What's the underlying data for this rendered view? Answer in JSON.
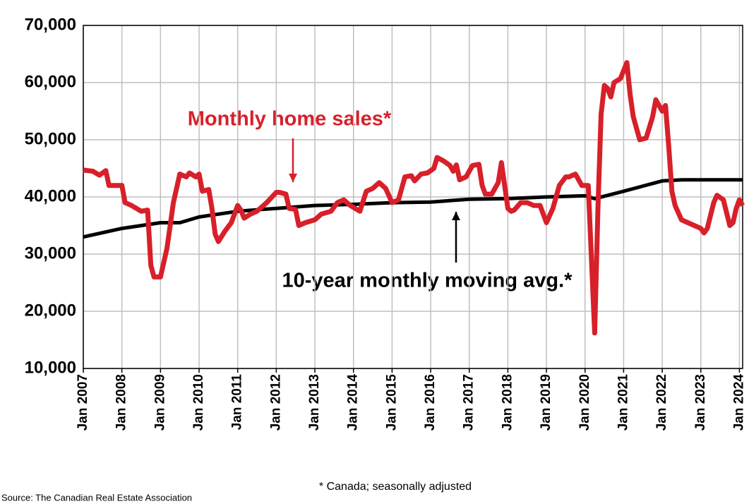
{
  "chart_data": {
    "type": "line",
    "annotations": [
      "Monthly home sales*",
      "10-year monthly moving avg.*"
    ],
    "footnote": "* Canada; seasonally adjusted",
    "source": "Source: The Canadian Real Estate Association",
    "grid": true,
    "xlim": [
      "2007-01",
      "2024-02"
    ],
    "xticks": [
      {
        "value": "2007-01",
        "label": "Jan 2007"
      },
      {
        "value": "2008-01",
        "label": "Jan 2008"
      },
      {
        "value": "2009-01",
        "label": "Jan 2009"
      },
      {
        "value": "2010-01",
        "label": "Jan 2010"
      },
      {
        "value": "2011-01",
        "label": "Jan 2011"
      },
      {
        "value": "2012-01",
        "label": "Jan 2012"
      },
      {
        "value": "2013-01",
        "label": "Jan 2013"
      },
      {
        "value": "2014-01",
        "label": "Jan 2014"
      },
      {
        "value": "2015-01",
        "label": "Jan 2015"
      },
      {
        "value": "2016-01",
        "label": "Jan 2016"
      },
      {
        "value": "2017-01",
        "label": "Jan 2017"
      },
      {
        "value": "2018-01",
        "label": "Jan 2018"
      },
      {
        "value": "2019-01",
        "label": "Jan 2019"
      },
      {
        "value": "2020-01",
        "label": "Jan 2020"
      },
      {
        "value": "2021-01",
        "label": "Jan 2021"
      },
      {
        "value": "2022-01",
        "label": "Jan 2022"
      },
      {
        "value": "2023-01",
        "label": "Jan 2023"
      },
      {
        "value": "2024-01",
        "label": "Jan 2024"
      }
    ],
    "ylim": [
      10000,
      70000
    ],
    "yticks": [
      {
        "value": 10000,
        "label": "10,000"
      },
      {
        "value": 20000,
        "label": "20,000"
      },
      {
        "value": 30000,
        "label": "30,000"
      },
      {
        "value": 40000,
        "label": "40,000"
      },
      {
        "value": 50000,
        "label": "50,000"
      },
      {
        "value": 60000,
        "label": "60,000"
      },
      {
        "value": 70000,
        "label": "70,000"
      }
    ],
    "series": [
      {
        "color": "#d7202a",
        "x": [
          "2007-01",
          "2007-04",
          "2007-06",
          "2007-08",
          "2007-09",
          "2008-01",
          "2008-02",
          "2008-04",
          "2008-07",
          "2008-09",
          "2008-10",
          "2008-11",
          "2009-01",
          "2009-03",
          "2009-05",
          "2009-07",
          "2009-09",
          "2009-10",
          "2009-12",
          "2010-01",
          "2010-02",
          "2010-04",
          "2010-05",
          "2010-06",
          "2010-07",
          "2010-09",
          "2010-11",
          "2011-01",
          "2011-02",
          "2011-03",
          "2011-05",
          "2011-07",
          "2011-10",
          "2012-01",
          "2012-02",
          "2012-04",
          "2012-05",
          "2012-07",
          "2012-08",
          "2012-10",
          "2013-01",
          "2013-03",
          "2013-06",
          "2013-08",
          "2013-10",
          "2013-12",
          "2014-03",
          "2014-05",
          "2014-07",
          "2014-09",
          "2014-11",
          "2015-01",
          "2015-03",
          "2015-05",
          "2015-07",
          "2015-08",
          "2015-10",
          "2015-12",
          "2016-02",
          "2016-03",
          "2016-05",
          "2016-07",
          "2016-08",
          "2016-09",
          "2016-10",
          "2016-12",
          "2017-02",
          "2017-04",
          "2017-05",
          "2017-06",
          "2017-08",
          "2017-10",
          "2017-11",
          "2018-01",
          "2018-02",
          "2018-03",
          "2018-05",
          "2018-07",
          "2018-09",
          "2018-11",
          "2019-01",
          "2019-03",
          "2019-05",
          "2019-07",
          "2019-08",
          "2019-10",
          "2019-12",
          "2020-01",
          "2020-02",
          "2020-04",
          "2020-05",
          "2020-06",
          "2020-07",
          "2020-08",
          "2020-09",
          "2020-10",
          "2020-12",
          "2021-02",
          "2021-03",
          "2021-04",
          "2021-06",
          "2021-08",
          "2021-10",
          "2021-11",
          "2022-01",
          "2022-02",
          "2022-03",
          "2022-04",
          "2022-05",
          "2022-07",
          "2022-09",
          "2023-01",
          "2023-02",
          "2023-03",
          "2023-05",
          "2023-06",
          "2023-08",
          "2023-10",
          "2023-11",
          "2023-12",
          "2024-01",
          "2024-02"
        ],
        "values": [
          44700,
          44500,
          43800,
          44600,
          42000,
          42000,
          39000,
          38500,
          37500,
          37700,
          28000,
          26000,
          26000,
          31000,
          39000,
          44000,
          43500,
          44200,
          43500,
          44000,
          41000,
          41300,
          38000,
          33500,
          32200,
          34000,
          35500,
          38500,
          37700,
          36300,
          37000,
          37500,
          39000,
          40800,
          40800,
          40500,
          38000,
          37800,
          35000,
          35500,
          36000,
          37000,
          37500,
          39000,
          39500,
          38500,
          37500,
          41000,
          41500,
          42500,
          41500,
          39000,
          39500,
          43500,
          43700,
          42800,
          44000,
          44200,
          45000,
          46900,
          46300,
          45500,
          44500,
          45600,
          43000,
          43500,
          45500,
          45700,
          42000,
          40500,
          40500,
          42500,
          46000,
          38000,
          37500,
          37700,
          39000,
          39000,
          38500,
          38500,
          35500,
          38000,
          42000,
          43500,
          43500,
          44000,
          42000,
          42000,
          42000,
          16200,
          38000,
          54500,
          59500,
          59000,
          57500,
          60000,
          60700,
          63500,
          58000,
          54000,
          50000,
          50300,
          54000,
          57000,
          55000,
          56000,
          49000,
          41000,
          38500,
          36000,
          35500,
          34500,
          33700,
          34500,
          39000,
          40300,
          39500,
          35000,
          35500,
          38000,
          39500,
          38500
        ]
      },
      {
        "color": "#000000",
        "x": [
          "2007-01",
          "2008-01",
          "2009-01",
          "2009-07",
          "2010-01",
          "2011-01",
          "2012-01",
          "2013-01",
          "2014-01",
          "2015-01",
          "2016-01",
          "2017-01",
          "2018-01",
          "2019-01",
          "2020-01",
          "2020-04",
          "2021-01",
          "2022-01",
          "2022-07",
          "2023-01",
          "2024-01",
          "2024-02"
        ],
        "values": [
          33000,
          34500,
          35500,
          35500,
          36500,
          37500,
          38000,
          38500,
          38700,
          39000,
          39100,
          39600,
          39700,
          40000,
          40200,
          39700,
          41000,
          42800,
          43000,
          43000,
          43000,
          43000
        ]
      }
    ]
  }
}
